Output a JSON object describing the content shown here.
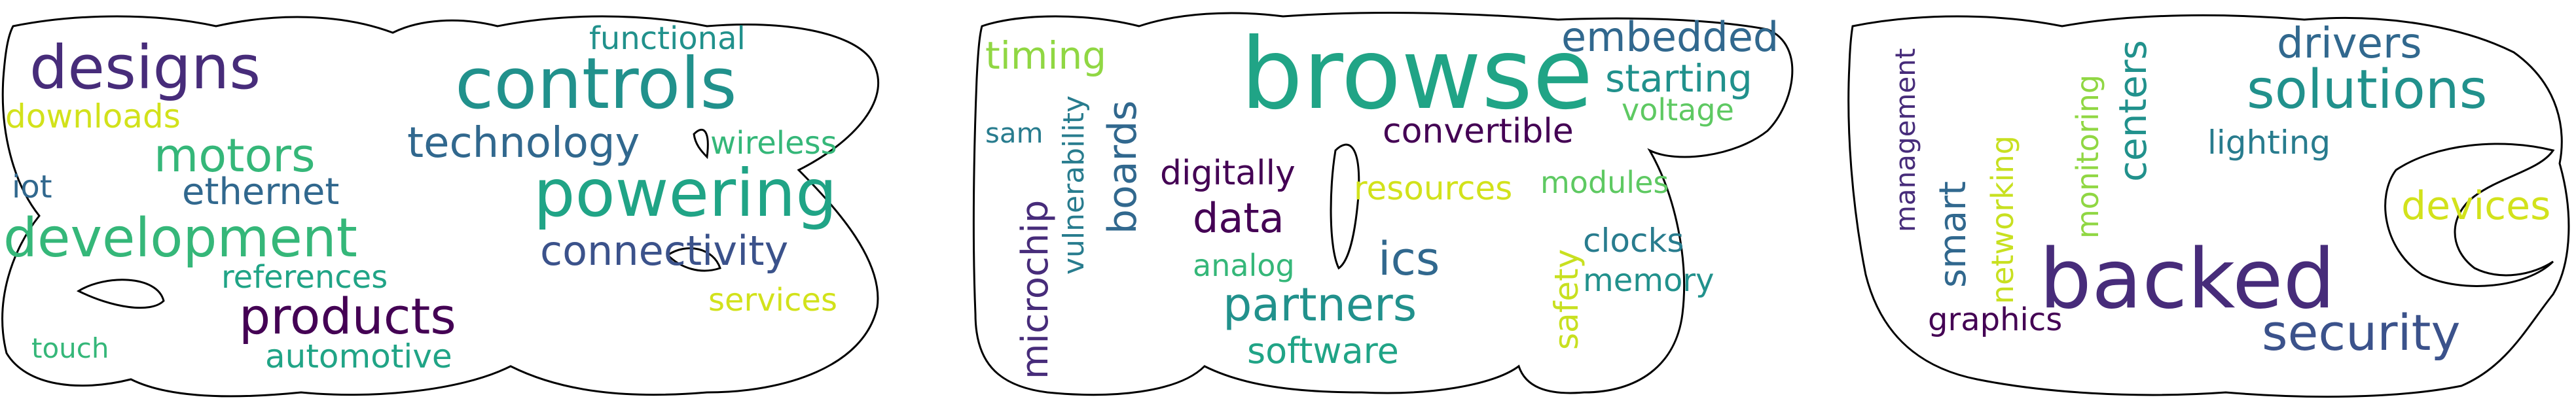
{
  "palette": {
    "d1": "#440154",
    "d2": "#472c7a",
    "b1": "#3b528b",
    "b2": "#31688e",
    "t1": "#287c8e",
    "t2": "#21918c",
    "g1": "#20a486",
    "g2": "#35b779",
    "g3": "#5ec962",
    "l1": "#90d743",
    "y1": "#d2e21b",
    "y2": "#c8e020"
  },
  "shapes": [
    "cloud-shape-left",
    "cloud-shape-middle",
    "cloud-shape-right"
  ],
  "words": [
    {
      "text": "designs",
      "color": "#472c7a"
    },
    {
      "text": "controls",
      "color": "#21918c"
    },
    {
      "text": "functional",
      "color": "#21918c"
    },
    {
      "text": "downloads",
      "color": "#d2e21b"
    },
    {
      "text": "technology",
      "color": "#31688e"
    },
    {
      "text": "wireless",
      "color": "#35b779"
    },
    {
      "text": "motors",
      "color": "#35b779"
    },
    {
      "text": "iot",
      "color": "#31688e"
    },
    {
      "text": "ethernet",
      "color": "#31688e"
    },
    {
      "text": "powering",
      "color": "#20a486"
    },
    {
      "text": "development",
      "color": "#35b779"
    },
    {
      "text": "connectivity",
      "color": "#3b528b"
    },
    {
      "text": "references",
      "color": "#20a486"
    },
    {
      "text": "products",
      "color": "#440154"
    },
    {
      "text": "services",
      "color": "#d2e21b"
    },
    {
      "text": "touch",
      "color": "#35b779"
    },
    {
      "text": "automotive",
      "color": "#20a486"
    },
    {
      "text": "timing",
      "color": "#90d743"
    },
    {
      "text": "sam",
      "color": "#287c8e"
    },
    {
      "text": "vulnerability",
      "color": "#287c8e"
    },
    {
      "text": "microchip",
      "color": "#472c7a"
    },
    {
      "text": "boards",
      "color": "#31688e"
    },
    {
      "text": "browse",
      "color": "#20a486"
    },
    {
      "text": "embedded",
      "color": "#31688e"
    },
    {
      "text": "starting",
      "color": "#21918c"
    },
    {
      "text": "voltage",
      "color": "#5ec962"
    },
    {
      "text": "convertible",
      "color": "#440154"
    },
    {
      "text": "digitally",
      "color": "#440154"
    },
    {
      "text": "resources",
      "color": "#d2e21b"
    },
    {
      "text": "modules",
      "color": "#5ec962"
    },
    {
      "text": "data",
      "color": "#440154"
    },
    {
      "text": "ics",
      "color": "#31688e"
    },
    {
      "text": "clocks",
      "color": "#287c8e"
    },
    {
      "text": "analog",
      "color": "#35b779"
    },
    {
      "text": "safety",
      "color": "#c8e020"
    },
    {
      "text": "memory",
      "color": "#21918c"
    },
    {
      "text": "partners",
      "color": "#21918c"
    },
    {
      "text": "software",
      "color": "#20a486"
    },
    {
      "text": "management",
      "color": "#472c7a"
    },
    {
      "text": "smart",
      "color": "#31688e"
    },
    {
      "text": "networking",
      "color": "#c8e020"
    },
    {
      "text": "monitoring",
      "color": "#90d743"
    },
    {
      "text": "centers",
      "color": "#21918c"
    },
    {
      "text": "drivers",
      "color": "#31688e"
    },
    {
      "text": "solutions",
      "color": "#21918c"
    },
    {
      "text": "lighting",
      "color": "#287c8e"
    },
    {
      "text": "devices",
      "color": "#d2e21b"
    },
    {
      "text": "backed",
      "color": "#472c7a"
    },
    {
      "text": "graphics",
      "color": "#440154"
    },
    {
      "text": "security",
      "color": "#3b528b"
    }
  ]
}
